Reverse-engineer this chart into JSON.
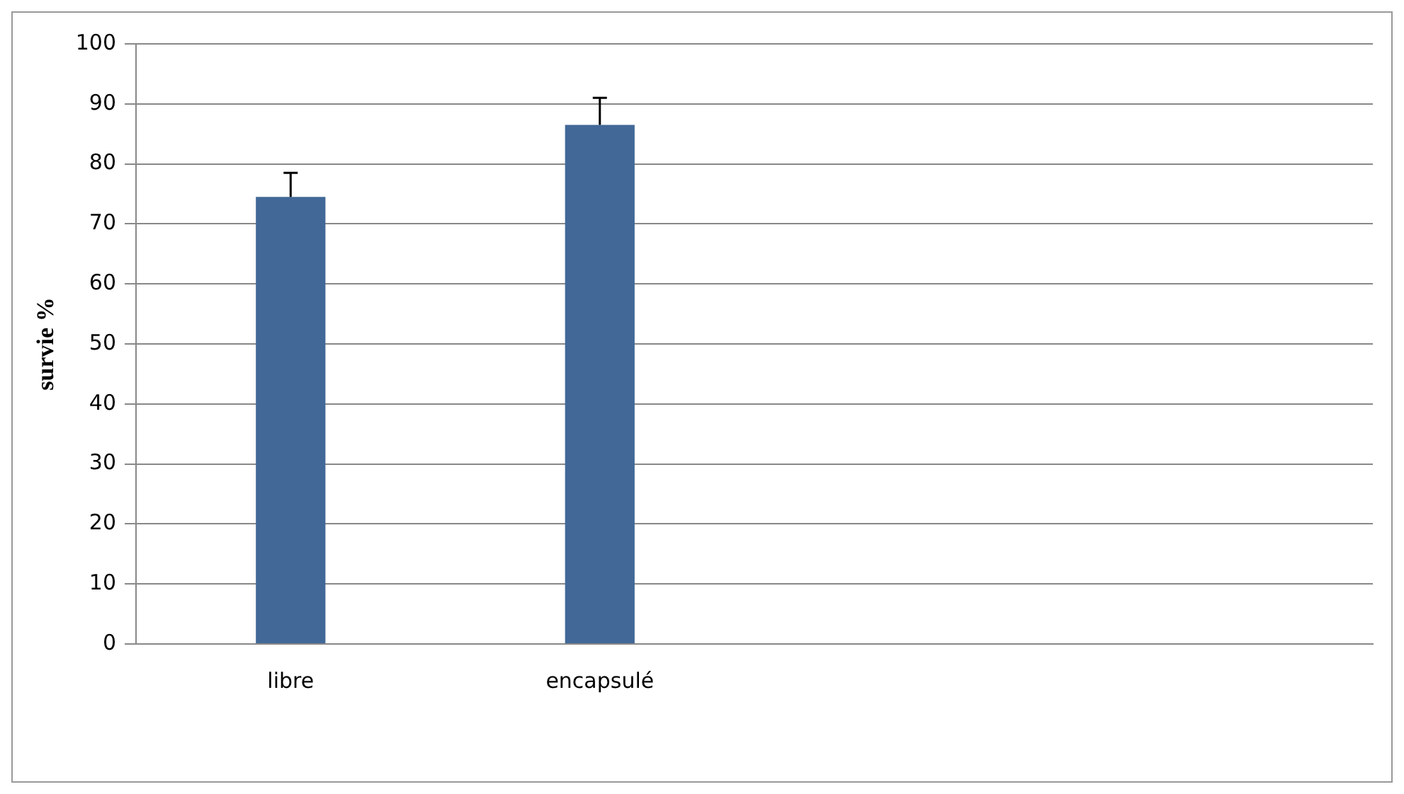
{
  "chart_data": {
    "type": "bar",
    "ylabel": "survie %",
    "categories": [
      "libre",
      "encapsulé",
      null,
      null
    ],
    "series": [
      {
        "color": "#416897",
        "values": [
          74.5,
          86.5,
          null,
          null
        ],
        "errors": [
          [
            74.5,
            78.5
          ],
          [
            86.5,
            91
          ],
          null,
          null
        ]
      }
    ],
    "ylim": [
      0,
      100
    ],
    "yticks": [
      0,
      10,
      20,
      30,
      40,
      50,
      60,
      70,
      80,
      90,
      100
    ],
    "grid": "y",
    "legend": false
  }
}
